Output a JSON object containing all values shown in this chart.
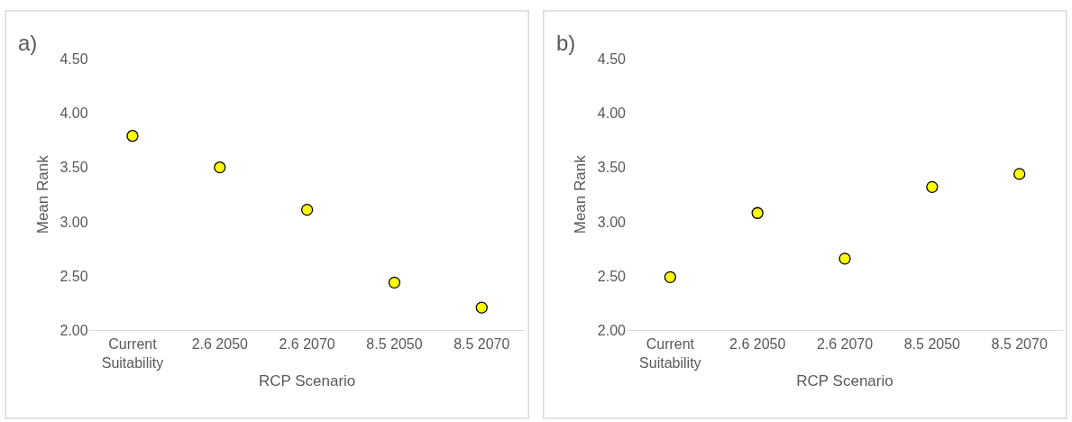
{
  "chart_data": [
    {
      "type": "scatter",
      "annotations": [
        "a)"
      ],
      "xlabel": "RCP Scenario",
      "ylabel": "Mean Rank",
      "categories": [
        "Current Suitability",
        "2.6 2050",
        "2.6 2070",
        "8.5 2050",
        "8.5 2070"
      ],
      "series": [
        {
          "color": "#ffff00",
          "values": [
            3.79,
            3.5,
            3.11,
            2.44,
            2.21
          ]
        }
      ],
      "ylim": [
        2,
        4.5
      ],
      "yticks": [
        {
          "value": 2,
          "label": "2.00"
        },
        {
          "value": 2.5,
          "label": "2.50"
        },
        {
          "value": 3,
          "label": "3.00"
        },
        {
          "value": 3.5,
          "label": "3.50"
        },
        {
          "value": 4,
          "label": "4.00"
        },
        {
          "value": 4.5,
          "label": "4.50"
        }
      ],
      "grid": false,
      "marker": "circle"
    },
    {
      "type": "scatter",
      "annotations": [
        "b)"
      ],
      "xlabel": "RCP Scenario",
      "ylabel": "Mean Rank",
      "categories": [
        "Current Suitability",
        "2.6 2050",
        "2.6 2070",
        "8.5 2050",
        "8.5 2070"
      ],
      "series": [
        {
          "color": "#ffff00",
          "values": [
            2.49,
            3.08,
            2.66,
            3.32,
            3.44
          ]
        }
      ],
      "ylim": [
        2,
        4.5
      ],
      "yticks": [
        {
          "value": 2,
          "label": "2.00"
        },
        {
          "value": 2.5,
          "label": "2.50"
        },
        {
          "value": 3,
          "label": "3.00"
        },
        {
          "value": 3.5,
          "label": "3.50"
        },
        {
          "value": 4,
          "label": "4.00"
        },
        {
          "value": 4.5,
          "label": "4.50"
        }
      ],
      "grid": false,
      "marker": "circle"
    }
  ]
}
